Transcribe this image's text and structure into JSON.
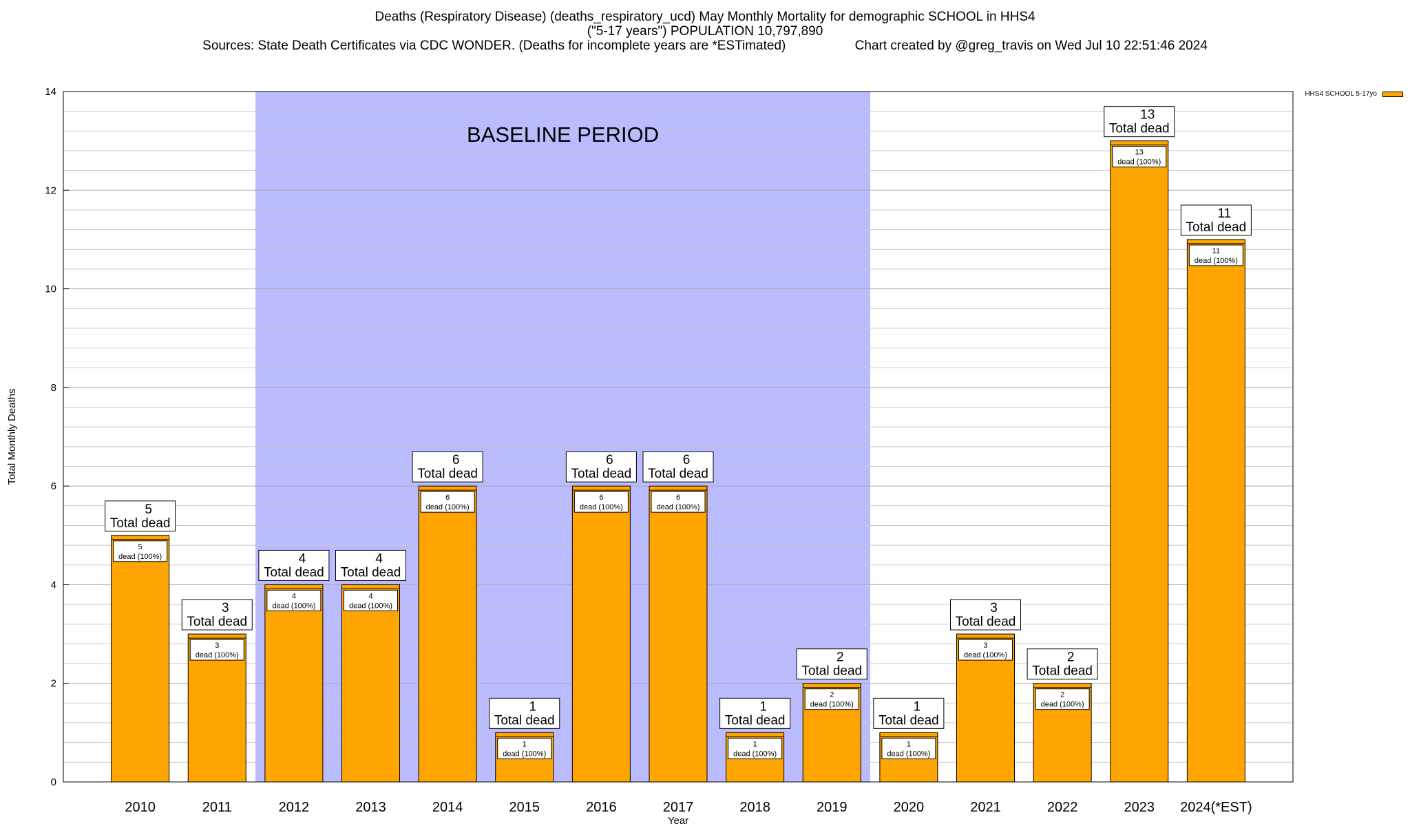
{
  "header": {
    "title": "Deaths (Respiratory Disease) (deaths_respiratory_ucd) May Monthly Mortality for demographic SCHOOL in HHS4",
    "subtitle": "(\"5-17 years\") POPULATION 10,797,890",
    "sources": "Sources: State Death Certificates via CDC WONDER. (Deaths for incomplete years are *ESTimated)",
    "credit": "Chart created by @greg_travis on Wed Jul 10 22:51:46 2024"
  },
  "legend": {
    "label": "HHS4 SCHOOL 5-17yo"
  },
  "colors": {
    "bar": "#FFA500",
    "baseline": "#BBBBFF",
    "grid": "#c8c8c8"
  },
  "chart_data": {
    "type": "bar",
    "categories": [
      "2010",
      "2011",
      "2012",
      "2013",
      "2014",
      "2015",
      "2016",
      "2017",
      "2018",
      "2019",
      "2020",
      "2021",
      "2022",
      "2023",
      "2024(*EST)"
    ],
    "series": [
      {
        "name": "HHS4 SCHOOL 5-17yo",
        "values": [
          5,
          3,
          4,
          4,
          6,
          1,
          6,
          6,
          1,
          2,
          1,
          3,
          2,
          13,
          11
        ]
      }
    ],
    "xlabel": "Year",
    "ylabel": "Total Monthly Deaths",
    "ylim": [
      0,
      14
    ],
    "yticks": [
      0,
      2,
      4,
      6,
      8,
      10,
      12,
      14
    ],
    "grid": true,
    "legend_position": "top-right",
    "baseline_period": {
      "label": "BASELINE PERIOD",
      "from": "2012",
      "to": "2019"
    },
    "total_label_text": "Total dead",
    "inner_label_text": "dead (100%)"
  }
}
